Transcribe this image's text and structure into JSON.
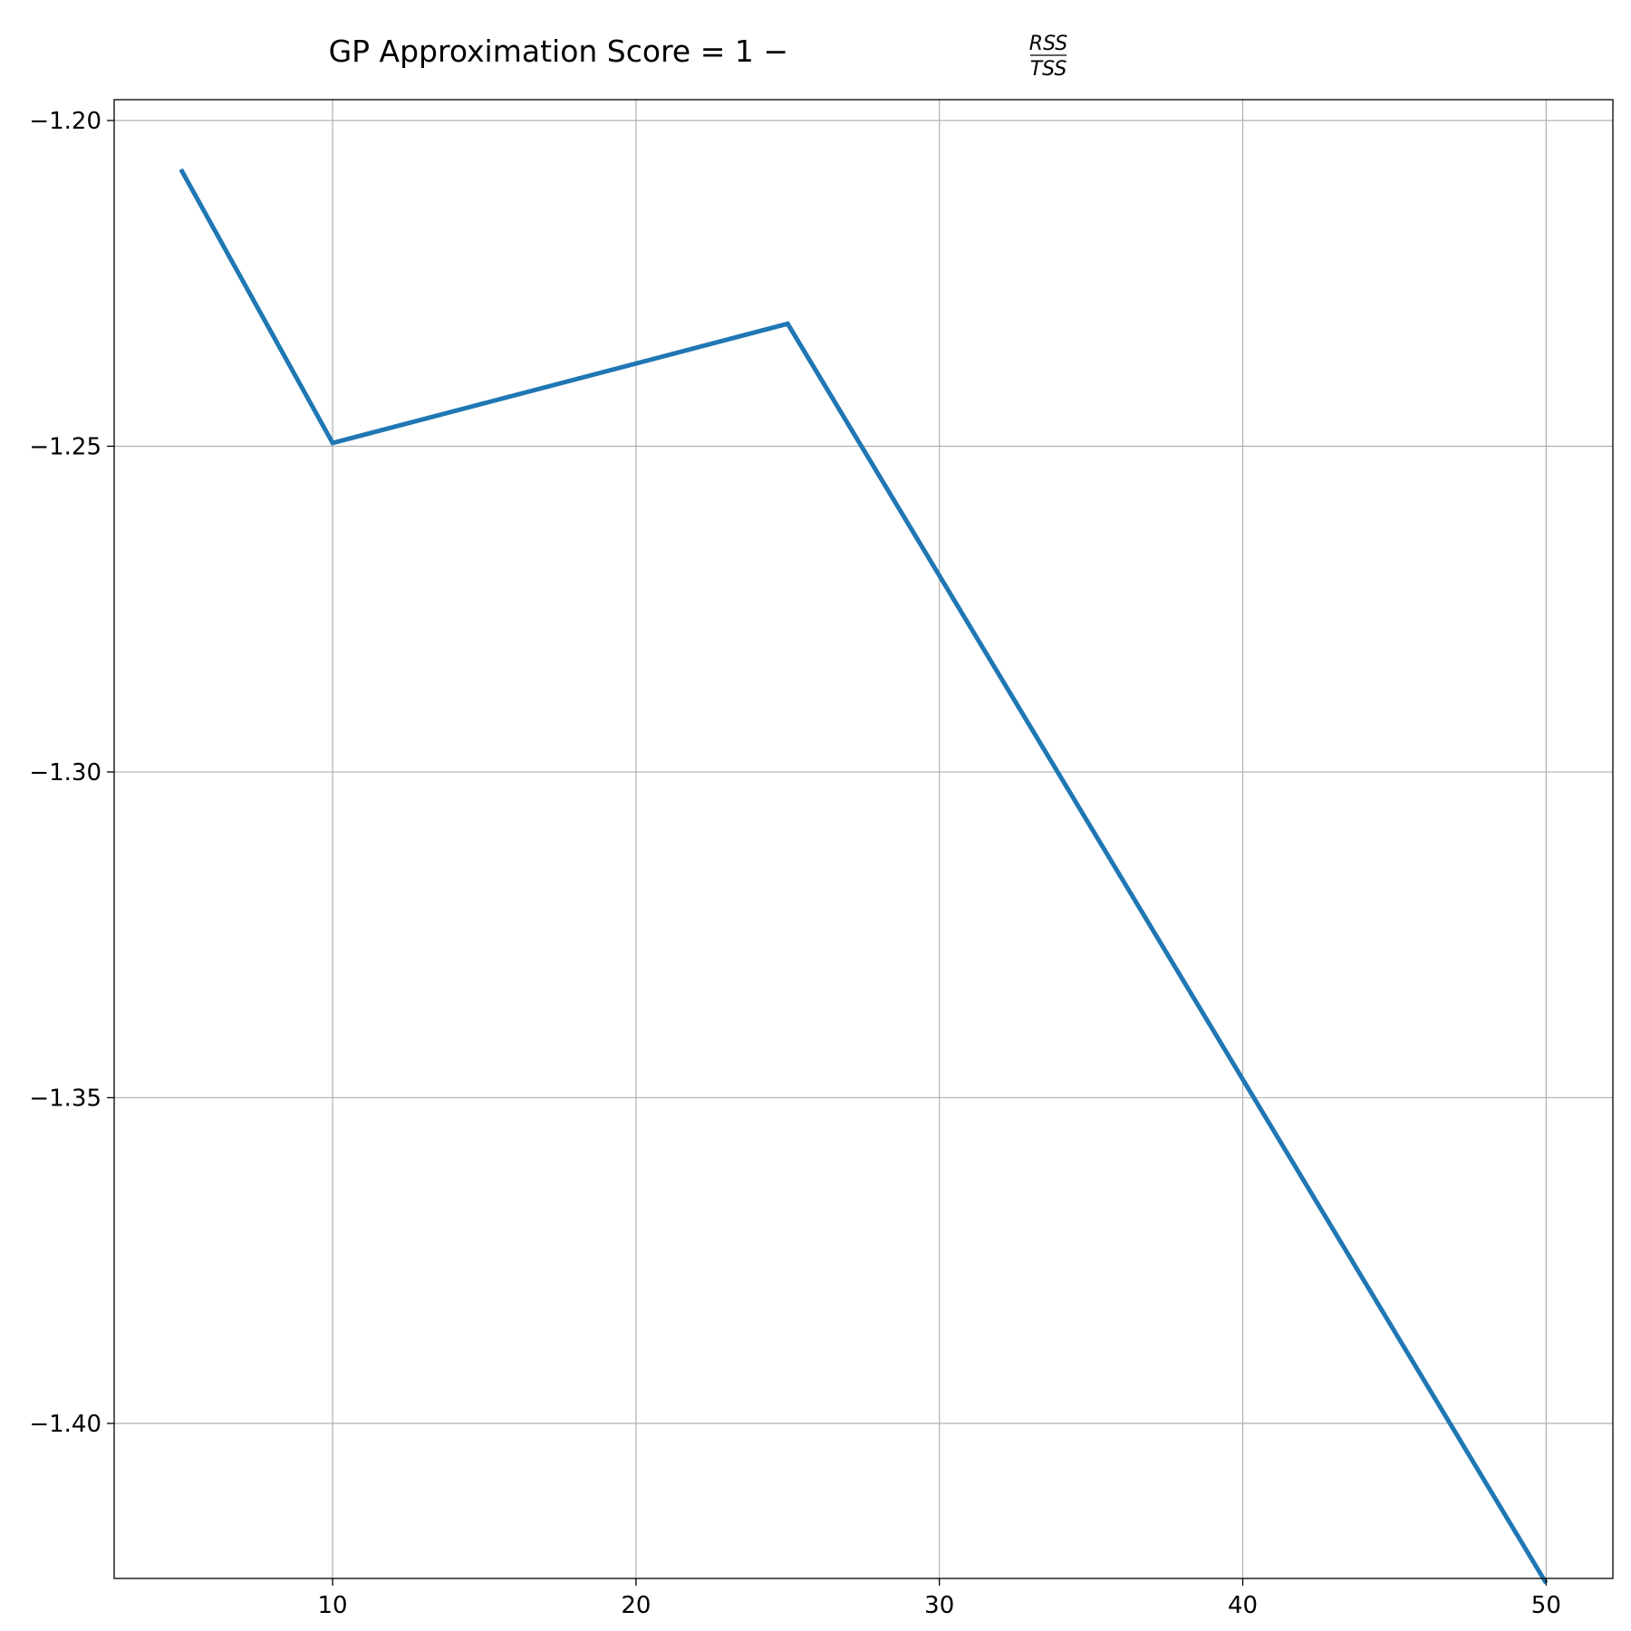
{
  "chart_data": {
    "type": "line",
    "title": {
      "prefix": "GP Approximation Score ",
      "equation": "= 1 −",
      "numerator": "RSS",
      "denominator": "TSS"
    },
    "xlabel": "",
    "ylabel": "",
    "xlim": [
      2.8,
      52.2
    ],
    "ylim": [
      -1.4238,
      -1.1968
    ],
    "x_ticks": [
      10,
      20,
      30,
      40,
      50
    ],
    "x_tick_labels": [
      "10",
      "20",
      "30",
      "40",
      "50"
    ],
    "y_ticks": [
      -1.2,
      -1.25,
      -1.3,
      -1.35,
      -1.4
    ],
    "y_tick_labels": [
      "−1.20",
      "−1.25",
      "−1.30",
      "−1.35",
      "−1.40"
    ],
    "grid": true,
    "series": [
      {
        "color": "#1f77b4",
        "x": [
          5,
          10,
          25,
          50
        ],
        "y": [
          -1.2075,
          -1.2495,
          -1.2312,
          -1.4245
        ]
      }
    ]
  }
}
